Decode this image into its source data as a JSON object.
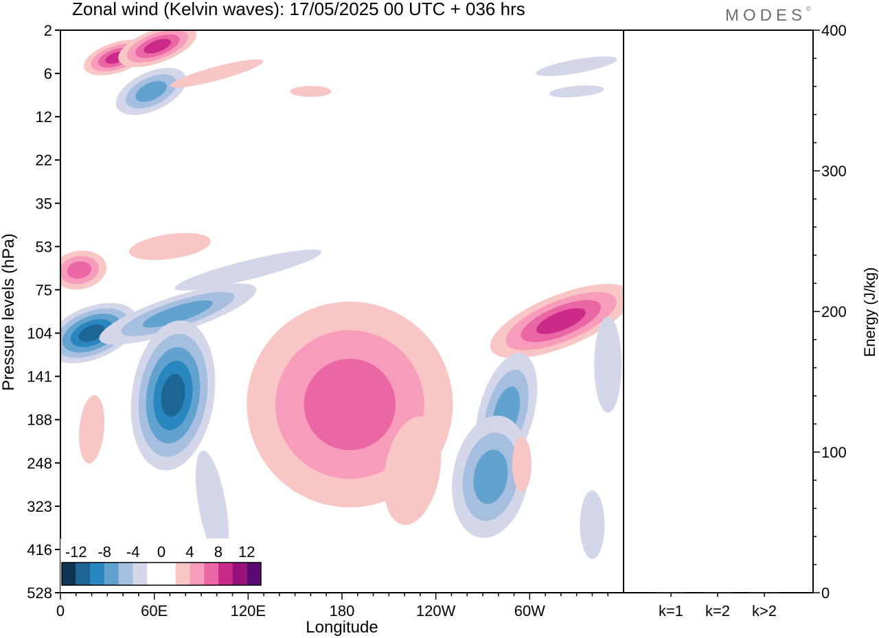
{
  "title": "Zonal wind (Kelvin waves):  17/05/2025  00 UTC  + 036 hrs",
  "brand": {
    "name": "MODES",
    "mark": "©"
  },
  "chart_data": [
    {
      "type": "heatmap",
      "title": "Zonal wind (Kelvin waves):  17/05/2025  00 UTC  + 036 hrs",
      "xlabel": "Longitude",
      "ylabel": "Pressure levels (hPa)",
      "x_ticks": [
        "0",
        "60E",
        "120E",
        "180",
        "120W",
        "60W"
      ],
      "x_tick_values": [
        0,
        60,
        120,
        180,
        240,
        300
      ],
      "xlim": [
        0,
        360
      ],
      "y_ticks": [
        "2",
        "6",
        "12",
        "22",
        "35",
        "53",
        "75",
        "104",
        "141",
        "188",
        "248",
        "323",
        "416",
        "528"
      ],
      "y_scale": "pressure levels (top = 2 hPa, bottom = 528 hPa)",
      "colorbar": {
        "labels": [
          "-12",
          "-8",
          "-4",
          "0",
          "4",
          "8",
          "12"
        ],
        "colors": [
          "#0f3552",
          "#1b6695",
          "#2a86bf",
          "#62a2cf",
          "#a6bedf",
          "#d4d7e9",
          "#ffffff",
          "#ffffff",
          "#f9c6c6",
          "#f79cbb",
          "#eb66a5",
          "#cc2a8a",
          "#98107a",
          "#5a0970"
        ]
      },
      "features": [
        {
          "sign": "positive",
          "lon": 36,
          "level": "4",
          "max": 10
        },
        {
          "sign": "positive",
          "lon": 62,
          "level": "3",
          "max": 10
        },
        {
          "sign": "negative",
          "lon": 58,
          "level": "8",
          "max": -6
        },
        {
          "sign": "positive",
          "lon": 12,
          "level": "64",
          "max": 6
        },
        {
          "sign": "negative",
          "lon": 20,
          "level": "104",
          "max": -10
        },
        {
          "sign": "negative",
          "lon": 75,
          "level": "90",
          "max": -6
        },
        {
          "sign": "negative",
          "lon": 72,
          "level": "160",
          "max": -12
        },
        {
          "sign": "positive",
          "lon": 185,
          "level": "170",
          "max": 6
        },
        {
          "sign": "positive",
          "lon": 320,
          "level": "95",
          "max": 8
        },
        {
          "sign": "negative",
          "lon": 285,
          "level": "180",
          "max": -6
        },
        {
          "sign": "negative",
          "lon": 275,
          "level": "270",
          "max": -6
        }
      ]
    },
    {
      "type": "bar",
      "categories": [
        "k=1",
        "k=2",
        "k>2"
      ],
      "values": [
        0.5,
        0.5,
        0.5
      ],
      "ylabel": "Energy (J/kg)",
      "ylim": [
        0,
        400
      ],
      "y_ticks": [
        0,
        100,
        200,
        300,
        400
      ]
    }
  ]
}
